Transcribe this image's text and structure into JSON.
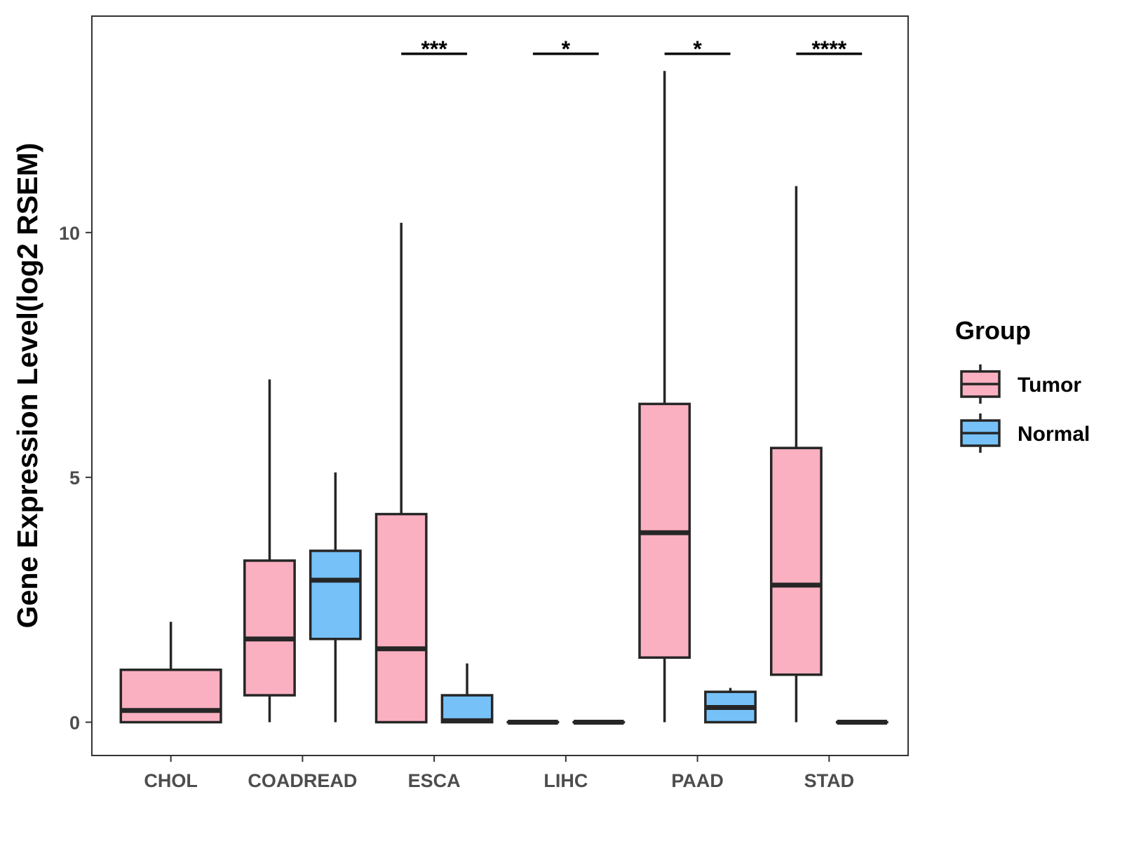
{
  "chart_data": {
    "type": "boxplot",
    "title": "",
    "xlabel": "",
    "ylabel": "Gene Expression Level(log2 RSEM)",
    "ylim": [
      -0.68,
      14.42
    ],
    "yticks": [
      0,
      5,
      10
    ],
    "ytick_labels": [
      "0",
      "5",
      "10"
    ],
    "grid": false,
    "categories": [
      "CHOL",
      "COADREAD",
      "ESCA",
      "LIHC",
      "PAAD",
      "STAD"
    ],
    "legend": {
      "title": "Group",
      "position": "right",
      "entries": [
        {
          "name": "Tumor",
          "color": "#FBB0C1"
        },
        {
          "name": "Normal",
          "color": "#76C1F8"
        }
      ]
    },
    "series": [
      {
        "name": "Tumor",
        "color": "#FBB0C1",
        "boxes": [
          {
            "category": "CHOL",
            "min": 0,
            "q1": 0,
            "median": 0.24,
            "q3": 1.07,
            "max": 2.05,
            "solo": true
          },
          {
            "category": "COADREAD",
            "min": 0,
            "q1": 0.55,
            "median": 1.7,
            "q3": 3.3,
            "max": 7.0
          },
          {
            "category": "ESCA",
            "min": 0,
            "q1": 0,
            "median": 1.5,
            "q3": 4.25,
            "max": 10.2
          },
          {
            "category": "LIHC",
            "min": 0,
            "q1": 0,
            "median": 0,
            "q3": 0,
            "max": 0
          },
          {
            "category": "PAAD",
            "min": 0,
            "q1": 1.32,
            "median": 3.87,
            "q3": 6.5,
            "max": 13.3
          },
          {
            "category": "STAD",
            "min": 0,
            "q1": 0.97,
            "median": 2.8,
            "q3": 5.6,
            "max": 10.95
          }
        ]
      },
      {
        "name": "Normal",
        "color": "#76C1F8",
        "boxes": [
          {
            "category": "COADREAD",
            "min": 0,
            "q1": 1.7,
            "median": 2.9,
            "q3": 3.5,
            "max": 5.1
          },
          {
            "category": "ESCA",
            "min": 0,
            "q1": 0,
            "median": 0.03,
            "q3": 0.55,
            "max": 1.2
          },
          {
            "category": "LIHC",
            "min": 0,
            "q1": 0,
            "median": 0,
            "q3": 0,
            "max": 0
          },
          {
            "category": "PAAD",
            "min": 0,
            "q1": 0,
            "median": 0.3,
            "q3": 0.62,
            "max": 0.7
          },
          {
            "category": "STAD",
            "min": 0,
            "q1": 0,
            "median": 0,
            "q3": 0,
            "max": 0
          }
        ]
      }
    ],
    "significance": [
      {
        "category": "ESCA",
        "label": "***",
        "y": 13.65
      },
      {
        "category": "LIHC",
        "label": "*",
        "y": 13.65
      },
      {
        "category": "PAAD",
        "label": "*",
        "y": 13.65
      },
      {
        "category": "STAD",
        "label": "****",
        "y": 13.65
      }
    ]
  }
}
